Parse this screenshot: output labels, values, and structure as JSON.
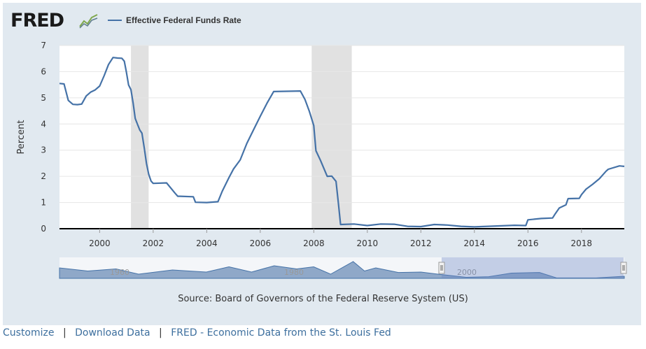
{
  "header": {
    "logo_text": "FRED",
    "logo_icon": "line-chart-icon",
    "legend_label": "Effective Federal Funds Rate",
    "legend_color": "#4572a7"
  },
  "source_text": "Source: Board of Governors of the Federal Reserve System (US)",
  "footer": {
    "links": [
      "Customize",
      "Download Data",
      "FRED - Economic Data from the St. Louis Fed"
    ],
    "separator": "|"
  },
  "navigator": {
    "labels": [
      "1960",
      "1980",
      "2000"
    ]
  },
  "chart_data": {
    "type": "line",
    "title": "",
    "xlabel": "",
    "ylabel": "Percent",
    "xlim": [
      1998.5,
      2019.6
    ],
    "ylim": [
      0,
      7
    ],
    "yticks": [
      0,
      1,
      2,
      3,
      4,
      5,
      6,
      7
    ],
    "xticks": [
      2000,
      2002,
      2004,
      2006,
      2008,
      2010,
      2012,
      2014,
      2016,
      2018
    ],
    "grid": "horizontal",
    "recessions": [
      [
        2001.17,
        2001.83
      ],
      [
        2007.92,
        2009.42
      ]
    ],
    "series": [
      {
        "name": "Effective Federal Funds Rate",
        "color": "#4572a7",
        "x": [
          1998.5,
          1998.67,
          1998.83,
          1999.0,
          1999.17,
          1999.33,
          1999.5,
          1999.67,
          1999.83,
          2000.0,
          2000.17,
          2000.33,
          2000.5,
          2000.67,
          2000.83,
          2000.92,
          2001.0,
          2001.08,
          2001.17,
          2001.25,
          2001.33,
          2001.42,
          2001.5,
          2001.58,
          2001.67,
          2001.75,
          2001.83,
          2001.92,
          2002.0,
          2002.5,
          2002.83,
          2002.92,
          2003.0,
          2003.5,
          2003.58,
          2004.0,
          2004.42,
          2004.58,
          2004.83,
          2005.0,
          2005.25,
          2005.5,
          2005.75,
          2006.0,
          2006.25,
          2006.5,
          2007.0,
          2007.5,
          2007.67,
          2007.83,
          2008.0,
          2008.08,
          2008.25,
          2008.5,
          2008.67,
          2008.83,
          2008.92,
          2009.0,
          2009.5,
          2010.0,
          2010.5,
          2011.0,
          2011.5,
          2012.0,
          2012.5,
          2013.0,
          2013.5,
          2014.0,
          2014.5,
          2015.0,
          2015.5,
          2015.92,
          2016.0,
          2016.5,
          2016.92,
          2017.0,
          2017.17,
          2017.42,
          2017.5,
          2017.92,
          2018.0,
          2018.17,
          2018.42,
          2018.67,
          2018.92,
          2019.0,
          2019.42,
          2019.6
        ],
        "y": [
          5.55,
          5.53,
          4.9,
          4.75,
          4.74,
          4.76,
          5.07,
          5.22,
          5.3,
          5.45,
          5.85,
          6.27,
          6.54,
          6.52,
          6.51,
          6.4,
          5.98,
          5.49,
          5.31,
          4.8,
          4.21,
          3.97,
          3.77,
          3.65,
          3.07,
          2.49,
          2.09,
          1.82,
          1.73,
          1.75,
          1.34,
          1.24,
          1.24,
          1.22,
          1.01,
          1.0,
          1.03,
          1.43,
          1.95,
          2.28,
          2.63,
          3.26,
          3.78,
          4.29,
          4.79,
          5.24,
          5.25,
          5.26,
          4.94,
          4.5,
          3.94,
          2.98,
          2.61,
          2.0,
          2.01,
          1.81,
          0.97,
          0.16,
          0.18,
          0.12,
          0.18,
          0.17,
          0.09,
          0.08,
          0.16,
          0.14,
          0.09,
          0.07,
          0.09,
          0.11,
          0.13,
          0.12,
          0.34,
          0.39,
          0.41,
          0.54,
          0.79,
          0.91,
          1.15,
          1.16,
          1.3,
          1.51,
          1.7,
          1.91,
          2.2,
          2.27,
          2.4,
          2.38
        ]
      }
    ]
  }
}
